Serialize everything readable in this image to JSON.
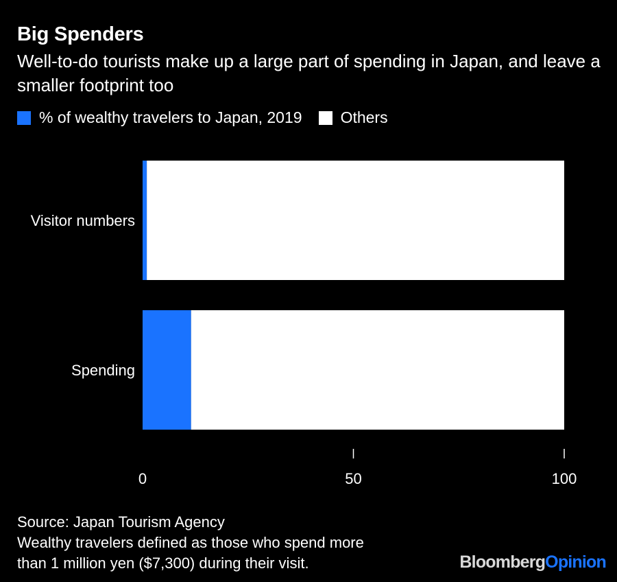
{
  "header": {
    "title": "Big Spenders",
    "subtitle": "Well-to-do tourists make up a large part of spending in Japan, and leave a smaller footprint too"
  },
  "legend": {
    "items": [
      {
        "label": "% of wealthy travelers to Japan, 2019",
        "color": "#1a73ff"
      },
      {
        "label": "Others",
        "color": "#ffffff"
      }
    ]
  },
  "chart_data": {
    "type": "bar",
    "orientation": "horizontal",
    "stacked": true,
    "categories": [
      "Visitor numbers",
      "Spending"
    ],
    "series": [
      {
        "name": "% of wealthy travelers to Japan, 2019",
        "values": [
          1,
          11.5
        ],
        "color": "#1a73ff"
      },
      {
        "name": "Others",
        "values": [
          99,
          88.5
        ],
        "color": "#ffffff"
      }
    ],
    "xlim": [
      0,
      100
    ],
    "xticks": [
      0,
      50,
      100
    ],
    "grid": false,
    "legend_position": "top-left"
  },
  "footer": {
    "source": "Source: Japan Tourism Agency",
    "note_line1": "Wealthy travelers defined as those who spend more",
    "note_line2": "than 1 million yen ($7,300) during their visit."
  },
  "branding": {
    "part1": "Bloomberg",
    "part2": "Opinion"
  }
}
